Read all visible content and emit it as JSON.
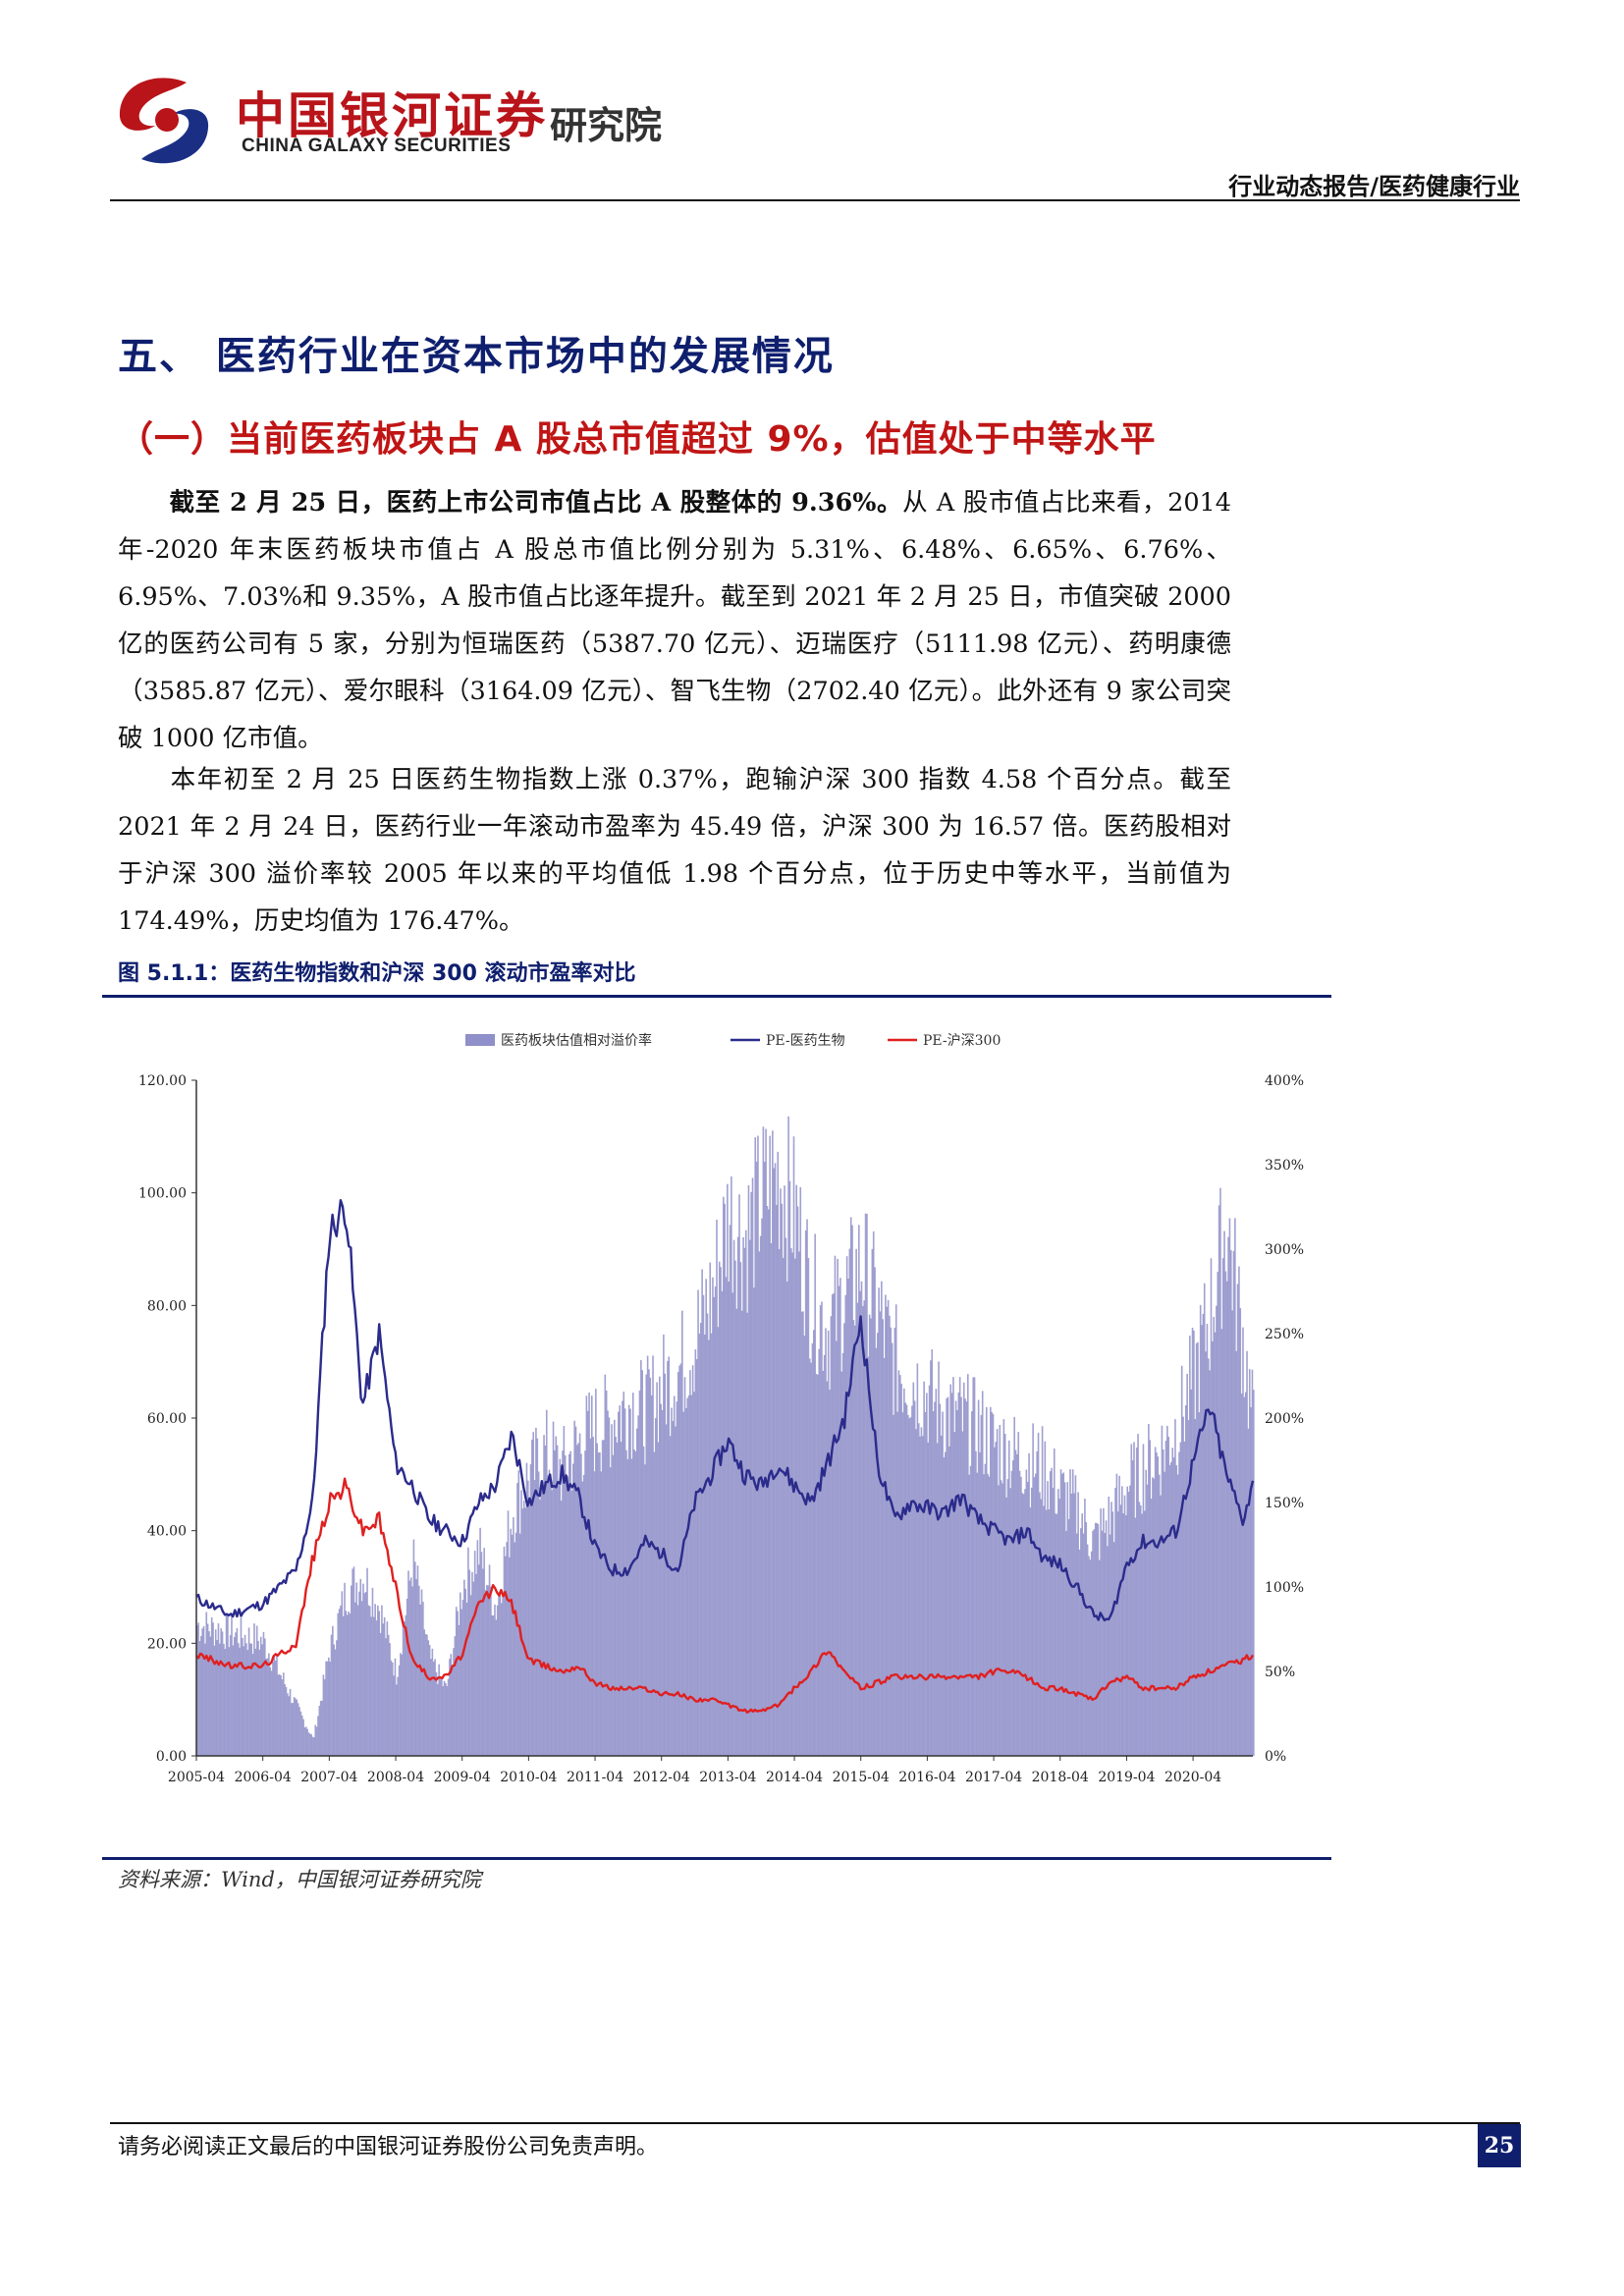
{
  "header": {
    "brand_cn": "中国银河证券",
    "brand_en": "CHINA GALAXY SECURITIES",
    "institute": "研究院",
    "category": "行业动态报告/医药健康行业",
    "logo_icon": "galaxy-s-logo-icon",
    "colors": {
      "brand_red": "#b8141a",
      "brand_blue": "#1a2e84"
    }
  },
  "section_title": "五、 医药行业在资本市场中的发展情况",
  "subsection_title": "（一）当前医药板块占 A 股总市值超过 9%，估值处于中等水平",
  "paragraphs": [
    {
      "lead": "截至 2 月 25 日，医药上市公司市值占比 A 股整体的 9.36%。",
      "text": "从 A 股市值占比来看，2014 年-2020 年末医药板块市值占 A 股总市值比例分别为 5.31%、6.48%、6.65%、6.76%、6.95%、7.03%和 9.35%，A 股市值占比逐年提升。截至到 2021 年 2 月 25 日，市值突破 2000 亿的医药公司有 5 家，分别为恒瑞医药（5387.70 亿元）、迈瑞医疗（5111.98 亿元）、药明康德（3585.87 亿元）、爱尔眼科（3164.09 亿元）、智飞生物（2702.40 亿元）。此外还有 9 家公司突破 1000 亿市值。"
    },
    {
      "lead": "",
      "text": "本年初至 2 月 25 日医药生物指数上涨 0.37%，跑输沪深 300 指数 4.58 个百分点。截至 2021 年 2 月 24 日，医药行业一年滚动市盈率为 45.49 倍，沪深 300 为 16.57 倍。医药股相对于沪深 300 溢价率较 2005 年以来的平均值低 1.98 个百分点，位于历史中等水平，当前值为 174.49%，历史均值为 176.47%。"
    }
  ],
  "figure": {
    "title": "图 5.1.1：医药生物指数和沪深 300 滚动市盈率对比",
    "source": "资料来源：Wind，中国银河证券研究院"
  },
  "chart_data": {
    "type": "bar+line",
    "legend": [
      "医药板块估值相对溢价率",
      "PE-医药生物",
      "PE-沪深300"
    ],
    "legend_position": "top",
    "x_ticks": [
      "2005-04",
      "2006-04",
      "2007-04",
      "2008-04",
      "2009-04",
      "2010-04",
      "2011-04",
      "2012-04",
      "2013-04",
      "2014-04",
      "2015-04",
      "2016-04",
      "2017-04",
      "2018-04",
      "2019-04",
      "2020-04"
    ],
    "y_left": {
      "ticks": [
        "0.00",
        "20.00",
        "40.00",
        "60.00",
        "80.00",
        "100.00",
        "120.00"
      ],
      "range": [
        0,
        120
      ]
    },
    "y_right": {
      "ticks": [
        "0%",
        "50%",
        "100%",
        "150%",
        "200%",
        "250%",
        "300%",
        "350%",
        "400%"
      ],
      "range": [
        0,
        400
      ]
    },
    "grid": false,
    "x": [
      2005.25,
      2005.75,
      2006.25,
      2006.75,
      2007.0,
      2007.25,
      2007.5,
      2007.75,
      2008.0,
      2008.25,
      2008.5,
      2008.75,
      2009.0,
      2009.25,
      2009.5,
      2009.75,
      2010.0,
      2010.25,
      2010.5,
      2010.75,
      2011.0,
      2011.25,
      2011.5,
      2011.75,
      2012.0,
      2012.25,
      2012.5,
      2012.75,
      2013.0,
      2013.25,
      2013.5,
      2013.75,
      2014.0,
      2014.25,
      2014.5,
      2014.75,
      2015.0,
      2015.25,
      2015.5,
      2015.75,
      2016.0,
      2016.25,
      2016.5,
      2016.75,
      2017.0,
      2017.25,
      2017.5,
      2017.75,
      2018.0,
      2018.25,
      2018.5,
      2018.75,
      2019.0,
      2019.25,
      2019.5,
      2019.75,
      2020.0,
      2020.25,
      2020.5,
      2020.75,
      2021.0,
      2021.15
    ],
    "series": [
      {
        "name": "医药板块估值相对溢价率",
        "axis": "right",
        "style": "bar",
        "color": "#8f8fc9",
        "values": [
          80,
          75,
          70,
          30,
          10,
          65,
          100,
          110,
          90,
          50,
          120,
          60,
          40,
          105,
          125,
          90,
          150,
          170,
          185,
          175,
          190,
          200,
          205,
          215,
          210,
          225,
          235,
          255,
          280,
          330,
          315,
          340,
          355,
          330,
          280,
          260,
          280,
          300,
          270,
          240,
          230,
          220,
          210,
          205,
          200,
          190,
          185,
          180,
          175,
          160,
          150,
          130,
          145,
          165,
          175,
          185,
          200,
          230,
          270,
          325,
          250,
          200
        ]
      },
      {
        "name": "PE-医药生物",
        "axis": "left",
        "style": "line",
        "color": "#2b2b8c",
        "values": [
          28,
          25,
          27,
          33,
          45,
          93,
          98,
          62,
          75,
          52,
          48,
          42,
          40,
          38,
          45,
          48,
          57,
          45,
          48,
          50,
          46,
          37,
          33,
          33,
          38,
          36,
          33,
          45,
          50,
          56,
          50,
          48,
          52,
          48,
          45,
          52,
          60,
          78,
          52,
          42,
          45,
          44,
          43,
          46,
          42,
          40,
          38,
          40,
          35,
          34,
          30,
          25,
          24,
          34,
          38,
          38,
          40,
          52,
          62,
          50,
          42,
          48
        ]
      },
      {
        "name": "PE-沪深300",
        "axis": "left",
        "style": "line",
        "color": "#e02020",
        "values": [
          18,
          16,
          16,
          20,
          35,
          45,
          48,
          40,
          42,
          30,
          17,
          14,
          14,
          18,
          27,
          30,
          27,
          17,
          16,
          15,
          16,
          13,
          12,
          12,
          12,
          11,
          11,
          10,
          10,
          9,
          8,
          8,
          9,
          12,
          15,
          19,
          15,
          12,
          13,
          14,
          14,
          14,
          14,
          14,
          14,
          15,
          15,
          14,
          12,
          12,
          11,
          10,
          13,
          14,
          12,
          12,
          12,
          14,
          15,
          16,
          17,
          18
        ]
      }
    ]
  },
  "footer": {
    "disclaimer": "请务必阅读正文最后的中国银河证券股份公司免责声明。",
    "page_number": "25"
  }
}
